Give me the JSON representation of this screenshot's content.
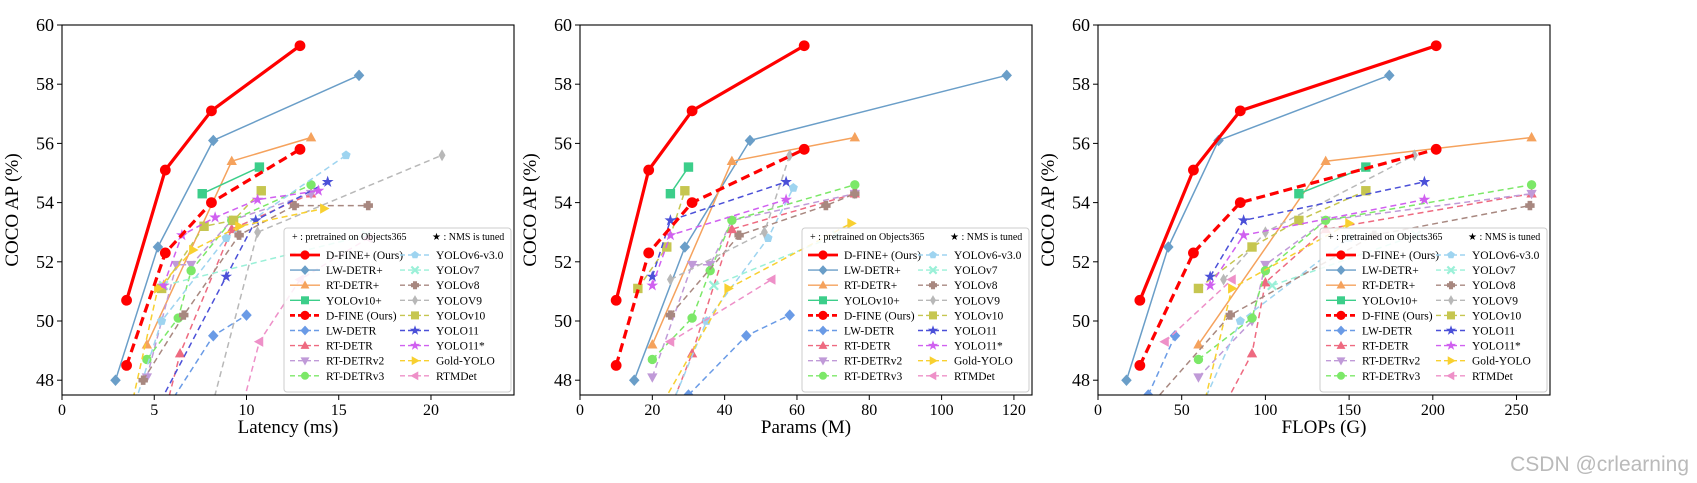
{
  "watermark": "CSDN @crlearning",
  "legend_header": {
    "pretrained": "+ : pretrained on Objects365",
    "nms": "★ : NMS is tuned"
  },
  "series_styles": [
    {
      "name": "D-FINE+ (Ours)",
      "color": "#ff0000",
      "marker": "circle",
      "dash": false,
      "bold": true
    },
    {
      "name": "LW-DETR+",
      "color": "#6a9ec8",
      "marker": "diamond",
      "dash": false
    },
    {
      "name": "RT-DETR+",
      "color": "#f5a25d",
      "marker": "triangle",
      "dash": false
    },
    {
      "name": "YOLOv10+",
      "color": "#3cce8a",
      "marker": "square",
      "dash": false
    },
    {
      "name": "D-FINE (Ours)",
      "color": "#ff0000",
      "marker": "circle",
      "dash": true,
      "bold": true
    },
    {
      "name": "LW-DETR",
      "color": "#6a9be6",
      "marker": "diamond",
      "dash": true
    },
    {
      "name": "RT-DETR",
      "color": "#ee6a80",
      "marker": "triangle",
      "dash": true
    },
    {
      "name": "RT-DETRv2",
      "color": "#c09ad8",
      "marker": "tri-down",
      "dash": true
    },
    {
      "name": "RT-DETRv3",
      "color": "#7ce868",
      "marker": "circle",
      "dash": true
    },
    {
      "name": "YOLOv6-v3.0",
      "color": "#9ed4f0",
      "marker": "pentagon",
      "dash": true
    },
    {
      "name": "YOLOv7",
      "color": "#9af0d8",
      "marker": "x",
      "dash": true
    },
    {
      "name": "YOLOv8",
      "color": "#a88880",
      "marker": "pplus",
      "dash": true
    },
    {
      "name": "YOLOV9",
      "color": "#b8b8b8",
      "marker": "thin-diamond",
      "dash": true
    },
    {
      "name": "YOLOv10",
      "color": "#c6c650",
      "marker": "square",
      "dash": true
    },
    {
      "name": "YOLO11",
      "color": "#4b50d8",
      "marker": "star",
      "dash": true
    },
    {
      "name": "YOLO11*",
      "color": "#d060f0",
      "marker": "star",
      "dash": true
    },
    {
      "name": "Gold-YOLO",
      "color": "#f8d030",
      "marker": "tri-right",
      "dash": true
    },
    {
      "name": "RTMDet",
      "color": "#ee90c8",
      "marker": "tri-left",
      "dash": true
    }
  ],
  "chart_data": [
    {
      "type": "line",
      "xlabel": "Latency (ms)",
      "ylabel": "COCO AP (%)",
      "xlim": [
        0,
        24.5
      ],
      "ylim": [
        47.5,
        60
      ],
      "xticks": [
        0,
        5,
        10,
        15,
        20
      ],
      "yticks": [
        48,
        50,
        52,
        54,
        56,
        58,
        60
      ],
      "series": [
        {
          "name": "D-FINE+ (Ours)",
          "x": [
            3.5,
            5.6,
            8.1,
            12.9
          ],
          "y": [
            50.7,
            55.1,
            57.1,
            59.3
          ]
        },
        {
          "name": "LW-DETR+",
          "x": [
            2.9,
            5.2,
            8.2,
            16.1
          ],
          "y": [
            48.0,
            52.5,
            56.1,
            58.3
          ]
        },
        {
          "name": "RT-DETR+",
          "x": [
            4.6,
            9.2,
            13.5
          ],
          "y": [
            49.2,
            55.4,
            56.2
          ]
        },
        {
          "name": "YOLOv10+",
          "x": [
            7.6,
            10.7
          ],
          "y": [
            54.3,
            55.2
          ]
        },
        {
          "name": "D-FINE (Ours)",
          "x": [
            3.5,
            5.6,
            8.1,
            12.9
          ],
          "y": [
            48.5,
            52.3,
            54.0,
            55.8
          ]
        },
        {
          "name": "LW-DETR",
          "x": [
            4.6,
            8.2,
            10.0
          ],
          "y": [
            46.0,
            49.5,
            50.2
          ]
        },
        {
          "name": "RT-DETR",
          "x": [
            5.0,
            6.4,
            9.2,
            13.5
          ],
          "y": [
            45.5,
            48.9,
            53.1,
            54.3
          ]
        },
        {
          "name": "RT-DETRv2",
          "x": [
            4.6,
            6.2,
            7.0,
            9.2,
            13.5
          ],
          "y": [
            48.1,
            51.9,
            51.9,
            53.4,
            54.3
          ]
        },
        {
          "name": "RT-DETRv3",
          "x": [
            4.6,
            6.3,
            7.0,
            9.2,
            13.5
          ],
          "y": [
            48.7,
            50.1,
            51.7,
            53.4,
            54.6
          ]
        },
        {
          "name": "YOLOv6-v3.0",
          "x": [
            2.8,
            5.4,
            8.9,
            15.4
          ],
          "y": [
            45.0,
            50.0,
            52.8,
            55.6
          ]
        },
        {
          "name": "YOLOv7",
          "x": [
            5.5,
            16.5
          ],
          "y": [
            51.2,
            52.9
          ]
        },
        {
          "name": "YOLOv8",
          "x": [
            4.4,
            6.6,
            9.6,
            12.6,
            16.6
          ],
          "y": [
            48.0,
            50.2,
            52.9,
            53.9,
            53.9
          ]
        },
        {
          "name": "YOLOV9",
          "x": [
            8.0,
            10.6,
            20.6
          ],
          "y": [
            46.8,
            53.0,
            55.6
          ]
        },
        {
          "name": "YOLOv10",
          "x": [
            5.4,
            7.7,
            9.3,
            10.8
          ],
          "y": [
            51.1,
            53.2,
            53.4,
            54.4
          ]
        },
        {
          "name": "YOLO11",
          "x": [
            5.1,
            8.9,
            10.5,
            14.4
          ],
          "y": [
            47.0,
            51.5,
            53.4,
            54.7
          ]
        },
        {
          "name": "YOLO11*",
          "x": [
            5.5,
            6.5,
            8.3,
            10.6,
            13.9
          ],
          "y": [
            51.2,
            52.9,
            53.5,
            54.1,
            54.4
          ]
        },
        {
          "name": "Gold-YOLO",
          "x": [
            3.5,
            5.2,
            7.1,
            9.6,
            14.2
          ],
          "y": [
            46.4,
            51.1,
            52.4,
            53.2,
            53.8
          ]
        },
        {
          "name": "RTMDet",
          "x": [
            9.3,
            10.7,
            12.9,
            16.6
          ],
          "y": [
            46.0,
            49.3,
            51.4,
            52.8
          ]
        }
      ]
    },
    {
      "type": "line",
      "xlabel": "Params (M)",
      "ylabel": "COCO AP (%)",
      "xlim": [
        0,
        125
      ],
      "ylim": [
        47.5,
        60
      ],
      "xticks": [
        0,
        20,
        40,
        60,
        80,
        100,
        120
      ],
      "yticks": [
        48,
        50,
        52,
        54,
        56,
        58,
        60
      ],
      "series": [
        {
          "name": "D-FINE+ (Ours)",
          "x": [
            10,
            19,
            31,
            62
          ],
          "y": [
            50.7,
            55.1,
            57.1,
            59.3
          ]
        },
        {
          "name": "LW-DETR+",
          "x": [
            15,
            29,
            47,
            118
          ],
          "y": [
            48.0,
            52.5,
            56.1,
            58.3
          ]
        },
        {
          "name": "RT-DETR+",
          "x": [
            20,
            42,
            76
          ],
          "y": [
            49.2,
            55.4,
            56.2
          ]
        },
        {
          "name": "YOLOv10+",
          "x": [
            25,
            30
          ],
          "y": [
            54.3,
            55.2
          ]
        },
        {
          "name": "D-FINE (Ours)",
          "x": [
            10,
            19,
            31,
            62
          ],
          "y": [
            48.5,
            52.3,
            54.0,
            55.8
          ]
        },
        {
          "name": "LW-DETR",
          "x": [
            30,
            46,
            58
          ],
          "y": [
            47.5,
            49.5,
            50.2
          ]
        },
        {
          "name": "RT-DETR",
          "x": [
            20,
            31,
            42,
            76
          ],
          "y": [
            45.5,
            48.9,
            53.1,
            54.3
          ]
        },
        {
          "name": "RT-DETRv2",
          "x": [
            20,
            31,
            36,
            42,
            76
          ],
          "y": [
            48.1,
            51.9,
            51.9,
            53.4,
            54.3
          ]
        },
        {
          "name": "RT-DETRv3",
          "x": [
            20,
            31,
            36,
            42,
            76
          ],
          "y": [
            48.7,
            50.1,
            51.7,
            53.4,
            54.6
          ]
        },
        {
          "name": "YOLOv6-v3.0",
          "x": [
            18,
            35,
            52,
            59
          ],
          "y": [
            45.0,
            50.0,
            52.8,
            54.5
          ]
        },
        {
          "name": "YOLOv7",
          "x": [
            37,
            71
          ],
          "y": [
            51.2,
            52.9
          ]
        },
        {
          "name": "YOLOv8",
          "x": [
            25,
            44,
            68,
            76
          ],
          "y": [
            50.2,
            52.9,
            53.9,
            54.3
          ]
        },
        {
          "name": "YOLOV9",
          "x": [
            25,
            51,
            58
          ],
          "y": [
            51.4,
            53.0,
            55.6
          ]
        },
        {
          "name": "YOLOv10",
          "x": [
            16,
            24,
            29
          ],
          "y": [
            51.1,
            52.5,
            54.4
          ]
        },
        {
          "name": "YOLO11",
          "x": [
            20,
            25,
            57
          ],
          "y": [
            51.5,
            53.4,
            54.7
          ]
        },
        {
          "name": "YOLO11*",
          "x": [
            20,
            25,
            57
          ],
          "y": [
            51.2,
            52.9,
            54.1
          ]
        },
        {
          "name": "Gold-YOLO",
          "x": [
            19,
            41,
            75
          ],
          "y": [
            46.4,
            51.1,
            53.3
          ]
        },
        {
          "name": "RTMDet",
          "x": [
            25,
            53
          ],
          "y": [
            49.3,
            51.4
          ]
        }
      ]
    },
    {
      "type": "line",
      "xlabel": "FLOPs (G)",
      "ylabel": "COCO AP (%)",
      "xlim": [
        0,
        270
      ],
      "ylim": [
        47.5,
        60
      ],
      "xticks": [
        0,
        50,
        100,
        150,
        200,
        250
      ],
      "yticks": [
        48,
        50,
        52,
        54,
        56,
        58,
        60
      ],
      "series": [
        {
          "name": "D-FINE+ (Ours)",
          "x": [
            25,
            57,
            85,
            202
          ],
          "y": [
            50.7,
            55.1,
            57.1,
            59.3
          ]
        },
        {
          "name": "LW-DETR+",
          "x": [
            17,
            42,
            72,
            174
          ],
          "y": [
            48.0,
            52.5,
            56.1,
            58.3
          ]
        },
        {
          "name": "RT-DETR+",
          "x": [
            60,
            136,
            259
          ],
          "y": [
            49.2,
            55.4,
            56.2
          ]
        },
        {
          "name": "YOLOv10+",
          "x": [
            120,
            160
          ],
          "y": [
            54.3,
            55.2
          ]
        },
        {
          "name": "D-FINE (Ours)",
          "x": [
            25,
            57,
            85,
            202
          ],
          "y": [
            48.5,
            52.3,
            54.0,
            55.8
          ]
        },
        {
          "name": "LW-DETR",
          "x": [
            30,
            46
          ],
          "y": [
            47.5,
            49.5
          ]
        },
        {
          "name": "RT-DETR",
          "x": [
            60,
            92,
            100,
            136,
            259
          ],
          "y": [
            45.5,
            48.9,
            51.3,
            53.1,
            54.3
          ]
        },
        {
          "name": "RT-DETRv2",
          "x": [
            60,
            92,
            100,
            136,
            259
          ],
          "y": [
            48.1,
            50.0,
            51.9,
            53.4,
            54.3
          ]
        },
        {
          "name": "RT-DETRv3",
          "x": [
            60,
            92,
            100,
            136,
            259
          ],
          "y": [
            48.7,
            50.1,
            51.7,
            53.4,
            54.6
          ]
        },
        {
          "name": "YOLOv6-v3.0",
          "x": [
            45,
            85,
            150
          ],
          "y": [
            45.0,
            50.0,
            52.8
          ]
        },
        {
          "name": "YOLOv7",
          "x": [
            104,
            190
          ],
          "y": [
            51.2,
            52.9
          ]
        },
        {
          "name": "YOLOv8",
          "x": [
            29,
            79,
            165,
            258
          ],
          "y": [
            47.0,
            50.2,
            52.9,
            53.9
          ]
        },
        {
          "name": "YOLOV9",
          "x": [
            75,
            100,
            189
          ],
          "y": [
            51.4,
            53.0,
            55.6
          ]
        },
        {
          "name": "YOLOv10",
          "x": [
            60,
            92,
            120,
            160
          ],
          "y": [
            51.1,
            52.5,
            53.4,
            54.4
          ]
        },
        {
          "name": "YOLO11",
          "x": [
            67,
            87,
            195
          ],
          "y": [
            51.5,
            53.4,
            54.7
          ]
        },
        {
          "name": "YOLO11*",
          "x": [
            67,
            87,
            195
          ],
          "y": [
            51.2,
            52.9,
            54.1
          ]
        },
        {
          "name": "Gold-YOLO",
          "x": [
            60,
            80,
            150
          ],
          "y": [
            46.4,
            51.1,
            53.3
          ]
        },
        {
          "name": "RTMDet",
          "x": [
            40,
            80
          ],
          "y": [
            49.3,
            51.4
          ]
        }
      ]
    }
  ]
}
